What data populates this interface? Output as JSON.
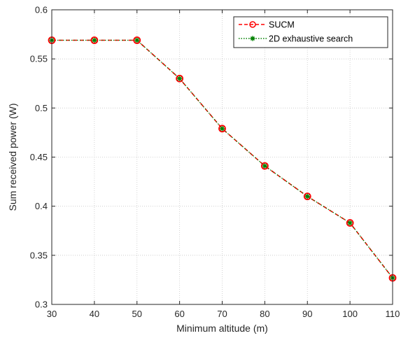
{
  "chart_data": {
    "type": "line",
    "title": "",
    "xlabel": "Minimum altitude (m)",
    "ylabel": "Sum received power (W)",
    "xlim": [
      30,
      110
    ],
    "ylim": [
      0.3,
      0.6
    ],
    "x": [
      30,
      40,
      50,
      60,
      70,
      80,
      90,
      100,
      110
    ],
    "xticks": [
      "30",
      "40",
      "50",
      "60",
      "70",
      "80",
      "90",
      "100",
      "110"
    ],
    "yticks": [
      "0.3",
      "0.35",
      "0.4",
      "0.45",
      "0.5",
      "0.55",
      "0.6"
    ],
    "grid": true,
    "legend_position": "top-right",
    "series": [
      {
        "name": "SUCM",
        "values": [
          0.569,
          0.569,
          0.569,
          0.53,
          0.479,
          0.441,
          0.41,
          0.383,
          0.327
        ],
        "color": "#ff0000",
        "line_style": "dashed",
        "marker": "circle"
      },
      {
        "name": "2D exhaustive search",
        "values": [
          0.569,
          0.569,
          0.569,
          0.53,
          0.479,
          0.441,
          0.41,
          0.383,
          0.327
        ],
        "color": "#008000",
        "line_style": "dotted",
        "marker": "asterisk"
      }
    ]
  }
}
